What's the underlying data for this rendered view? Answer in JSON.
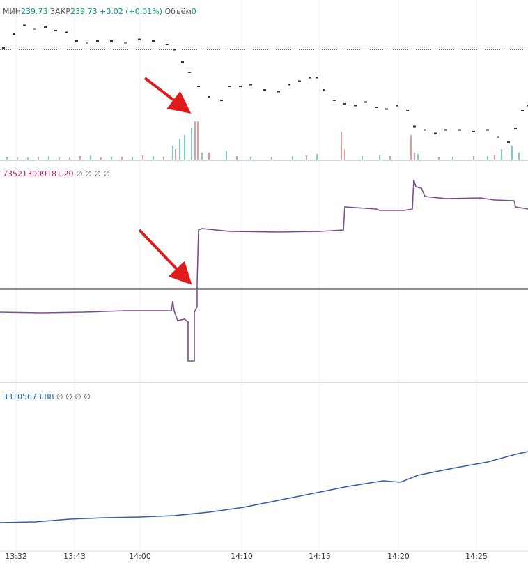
{
  "chart_data": [
    {
      "type": "scatter",
      "legend": [
        {
          "label": "МИН",
          "value": "239.73"
        },
        {
          "label": "ЗАКР",
          "value": "239.73"
        },
        {
          "value": "+0.02 (+0.01%)"
        },
        {
          "label": "Объём",
          "value": "0"
        }
      ],
      "label_color": "#555555",
      "value_color": "#089981",
      "color": "#333333",
      "xlim": [
        0,
        758
      ],
      "ylim": [
        239.1,
        240.0
      ],
      "reference_line": 239.73,
      "x": [
        5,
        20,
        35,
        50,
        65,
        80,
        95,
        110,
        125,
        140,
        160,
        180,
        200,
        220,
        240,
        250,
        262,
        272,
        285,
        300,
        318,
        330,
        345,
        360,
        380,
        400,
        415,
        430,
        445,
        455,
        465,
        480,
        495,
        510,
        525,
        540,
        555,
        570,
        585,
        595,
        610,
        625,
        640,
        660,
        680,
        700,
        715,
        730,
        740,
        750,
        758
      ],
      "values": [
        239.74,
        239.82,
        239.87,
        239.85,
        239.86,
        239.84,
        239.83,
        239.78,
        239.77,
        239.78,
        239.78,
        239.77,
        239.79,
        239.78,
        239.76,
        239.73,
        239.66,
        239.6,
        239.52,
        239.46,
        239.44,
        239.52,
        239.52,
        239.53,
        239.5,
        239.49,
        239.53,
        239.55,
        239.57,
        239.57,
        239.5,
        239.44,
        239.42,
        239.41,
        239.43,
        239.4,
        239.39,
        239.41,
        239.38,
        239.29,
        239.27,
        239.25,
        239.27,
        239.27,
        239.26,
        239.27,
        239.23,
        239.2,
        239.28,
        239.38,
        239.41
      ],
      "volume": {
        "ylim": [
          0,
          225
        ],
        "up": {
          "color": "#7ccfc6",
          "x": [
            10,
            40,
            70,
            100,
            130,
            160,
            190,
            220,
            248,
            258,
            265,
            275,
            290,
            325,
            360,
            420,
            455,
            520,
            545,
            600,
            650,
            700,
            720,
            735,
            745
          ],
          "values": [
            4,
            3,
            5,
            3,
            6,
            4,
            3,
            5,
            20,
            30,
            35,
            45,
            10,
            12,
            4,
            5,
            8,
            5,
            6,
            8,
            4,
            5,
            15,
            20,
            10
          ]
        },
        "down": {
          "color": "#e89a9a",
          "x": [
            25,
            55,
            85,
            115,
            145,
            175,
            205,
            235,
            252,
            280,
            284,
            300,
            340,
            390,
            440,
            490,
            495,
            560,
            590,
            595,
            630,
            680,
            710
          ],
          "values": [
            3,
            4,
            3,
            5,
            3,
            4,
            6,
            4,
            15,
            55,
            55,
            10,
            5,
            4,
            6,
            40,
            15,
            5,
            35,
            10,
            4,
            5,
            6
          ]
        }
      }
    },
    {
      "type": "line",
      "legend": [
        {
          "value": "735213009181.20"
        },
        {
          "label": "∅ ∅ ∅ ∅"
        }
      ],
      "label_color": "#555555",
      "value_color": "#c2185b",
      "color": "#7b4f8f",
      "xlim": [
        0,
        758
      ],
      "ylim": [
        -130,
        180
      ],
      "reference_line": 0,
      "x": [
        0,
        60,
        120,
        180,
        246,
        248,
        250,
        255,
        265,
        270,
        270,
        279,
        279,
        283,
        283,
        285,
        290,
        330,
        400,
        460,
        493,
        495,
        540,
        545,
        580,
        592,
        594,
        597,
        605,
        610,
        640,
        690,
        710,
        738,
        740,
        758
      ],
      "values": [
        -33,
        -34,
        -33,
        -31,
        -31,
        -17,
        -31,
        -45,
        -43,
        -47,
        -103,
        -103,
        -33,
        -25,
        10,
        85,
        87,
        83,
        82,
        83,
        85,
        118,
        115,
        113,
        113,
        115,
        157,
        147,
        145,
        133,
        130,
        131,
        128,
        127,
        118,
        115
      ]
    },
    {
      "type": "line",
      "legend": [
        {
          "value": "33105673.88"
        },
        {
          "label": "∅ ∅ ∅ ∅"
        }
      ],
      "label_color": "#555555",
      "value_color": "#1565c0",
      "color": "#3a5ba8",
      "xlim": [
        0,
        758
      ],
      "ylim": [
        0,
        235
      ],
      "x": [
        0,
        50,
        100,
        150,
        200,
        250,
        300,
        350,
        400,
        450,
        500,
        550,
        575,
        600,
        650,
        700,
        740,
        758
      ],
      "values": [
        40,
        41,
        45,
        47,
        48,
        50,
        55,
        62,
        72,
        82,
        92,
        100,
        98,
        108,
        118,
        127,
        138,
        142
      ],
      "xticks": [
        {
          "value": 23,
          "label": "13:32"
        },
        {
          "value": 107,
          "label": "13:43"
        },
        {
          "value": 201,
          "label": "14:00"
        },
        {
          "value": 347,
          "label": "14:10"
        },
        {
          "value": 459,
          "label": "14:15"
        },
        {
          "value": 572,
          "label": "14:20"
        },
        {
          "value": 684,
          "label": "14:25"
        }
      ]
    }
  ]
}
